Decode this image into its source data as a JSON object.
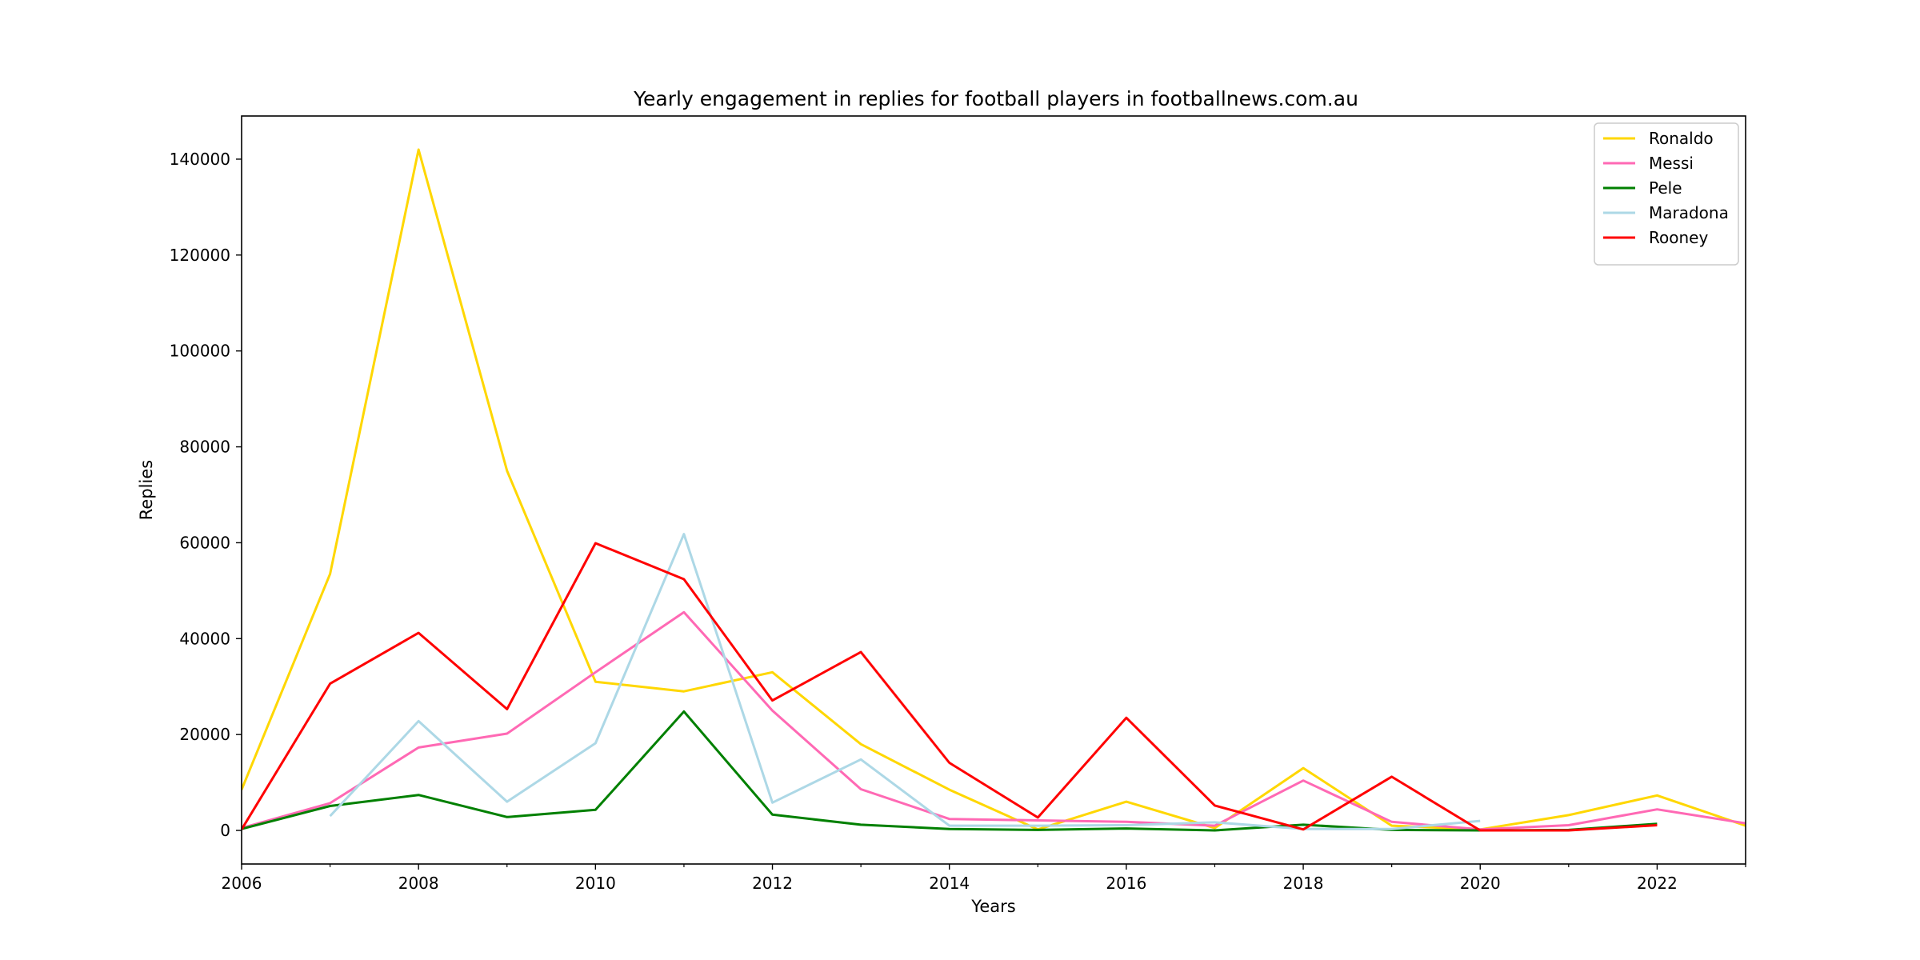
{
  "chart_data": {
    "type": "line",
    "title": "Yearly engagement in replies for football players in footballnews.com.au",
    "xlabel": "Years",
    "ylabel": "Replies",
    "xlim": [
      2006,
      2023
    ],
    "ylim": [
      -7000,
      149000
    ],
    "xticks": [
      2006,
      2008,
      2010,
      2012,
      2014,
      2016,
      2018,
      2020,
      2022
    ],
    "yticks": [
      0,
      20000,
      40000,
      60000,
      80000,
      100000,
      120000,
      140000
    ],
    "grid": false,
    "legend_position": "top-right",
    "series": [
      {
        "name": "Ronaldo",
        "color": "#FFD700",
        "x": [
          2006,
          2007,
          2008,
          2009,
          2010,
          2011,
          2012,
          2013,
          2014,
          2015,
          2016,
          2017,
          2018,
          2019,
          2020,
          2021,
          2022,
          2023
        ],
        "y": [
          8500,
          53500,
          142000,
          75000,
          31000,
          29000,
          33000,
          18000,
          8500,
          200,
          6000,
          500,
          13000,
          1000,
          200,
          3200,
          7300,
          1000
        ]
      },
      {
        "name": "Messi",
        "color": "#FF69B4",
        "x": [
          2006,
          2007,
          2008,
          2009,
          2010,
          2011,
          2012,
          2013,
          2014,
          2015,
          2016,
          2017,
          2018,
          2019,
          2020,
          2021,
          2022,
          2023
        ],
        "y": [
          500,
          5700,
          17300,
          20200,
          33000,
          45500,
          25000,
          8600,
          2400,
          2100,
          1800,
          1000,
          10400,
          1800,
          200,
          1100,
          4400,
          1500
        ]
      },
      {
        "name": "Pele",
        "color": "#008000",
        "x": [
          2006,
          2007,
          2008,
          2009,
          2010,
          2011,
          2012,
          2013,
          2014,
          2015,
          2016,
          2017,
          2018,
          2019,
          2020,
          2021,
          2022
        ],
        "y": [
          300,
          5100,
          7400,
          2800,
          4300,
          24800,
          3300,
          1200,
          300,
          100,
          400,
          0,
          1200,
          100,
          0,
          100,
          1400
        ]
      },
      {
        "name": "Maradona",
        "color": "#ADD8E6",
        "x": [
          2007,
          2008,
          2009,
          2010,
          2011,
          2012,
          2013,
          2014,
          2015,
          2016,
          2017,
          2018,
          2019,
          2020
        ],
        "y": [
          3000,
          22800,
          6000,
          18200,
          61800,
          5800,
          14800,
          1000,
          1000,
          1100,
          1700,
          300,
          300,
          2000
        ]
      },
      {
        "name": "Rooney",
        "color": "#FF0000",
        "x": [
          2006,
          2007,
          2008,
          2009,
          2010,
          2011,
          2012,
          2013,
          2014,
          2015,
          2016,
          2017,
          2018,
          2019,
          2020,
          2021,
          2022
        ],
        "y": [
          200,
          30600,
          41200,
          25300,
          59900,
          52400,
          27100,
          37200,
          14100,
          2700,
          23500,
          5200,
          200,
          11200,
          0,
          0,
          1100
        ]
      }
    ]
  }
}
